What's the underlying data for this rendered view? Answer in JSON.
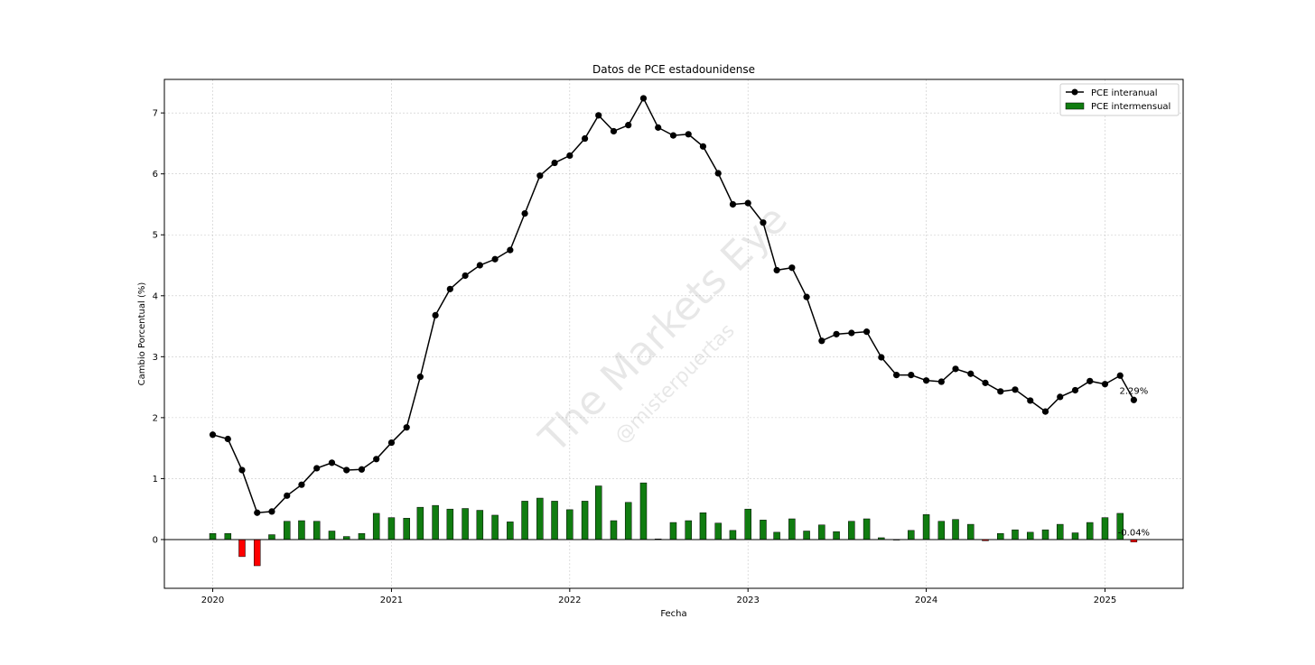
{
  "chart_data": {
    "type": "line",
    "title": "Datos de PCE estadounidense",
    "xlabel": "Fecha",
    "ylabel": "Cambio Porcentual (%)",
    "xlim": [
      "2019-09-24",
      "2025-06-10"
    ],
    "ylim": [
      -0.8,
      7.55
    ],
    "x_ticks": [
      "2020",
      "2021",
      "2022",
      "2023",
      "2024",
      "2025"
    ],
    "y_ticks": [
      0,
      1,
      2,
      3,
      4,
      5,
      6,
      7
    ],
    "grid": true,
    "legend_position": "top-right",
    "dates": [
      "2020-01",
      "2020-02",
      "2020-03",
      "2020-04",
      "2020-05",
      "2020-06",
      "2020-07",
      "2020-08",
      "2020-09",
      "2020-10",
      "2020-11",
      "2020-12",
      "2021-01",
      "2021-02",
      "2021-03",
      "2021-04",
      "2021-05",
      "2021-06",
      "2021-07",
      "2021-08",
      "2021-09",
      "2021-10",
      "2021-11",
      "2021-12",
      "2022-01",
      "2022-02",
      "2022-03",
      "2022-04",
      "2022-05",
      "2022-06",
      "2022-07",
      "2022-08",
      "2022-09",
      "2022-10",
      "2022-11",
      "2022-12",
      "2023-01",
      "2023-02",
      "2023-03",
      "2023-04",
      "2023-05",
      "2023-06",
      "2023-07",
      "2023-08",
      "2023-09",
      "2023-10",
      "2023-11",
      "2023-12",
      "2024-01",
      "2024-02",
      "2024-03",
      "2024-04",
      "2024-05",
      "2024-06",
      "2024-07",
      "2024-08",
      "2024-09",
      "2024-10",
      "2024-11",
      "2024-12",
      "2025-01",
      "2025-02",
      "2025-03"
    ],
    "series": [
      {
        "name": "PCE interanual",
        "type": "line",
        "color": "#000000",
        "values": [
          1.72,
          1.65,
          1.14,
          0.44,
          0.46,
          0.72,
          0.9,
          1.17,
          1.26,
          1.14,
          1.15,
          1.32,
          1.59,
          1.84,
          2.67,
          3.68,
          4.11,
          4.33,
          4.5,
          4.6,
          4.75,
          5.35,
          5.97,
          6.18,
          6.3,
          6.58,
          6.96,
          6.7,
          6.8,
          7.24,
          6.76,
          6.63,
          6.65,
          6.45,
          6.01,
          5.5,
          5.52,
          5.2,
          4.42,
          4.46,
          3.98,
          3.26,
          3.37,
          3.39,
          3.41,
          2.99,
          2.7,
          2.7,
          2.61,
          2.59,
          2.8,
          2.72,
          2.57,
          2.43,
          2.46,
          2.28,
          2.1,
          2.34,
          2.45,
          2.6,
          2.55,
          2.69,
          2.29
        ]
      },
      {
        "name": "PCE intermensual",
        "type": "bar",
        "color": "#107c10",
        "negative_color": "#ff0000",
        "values": [
          0.1,
          0.1,
          -0.28,
          -0.43,
          0.08,
          0.3,
          0.31,
          0.3,
          0.14,
          0.05,
          0.1,
          0.43,
          0.36,
          0.35,
          0.53,
          0.56,
          0.5,
          0.51,
          0.48,
          0.4,
          0.29,
          0.63,
          0.68,
          0.63,
          0.49,
          0.63,
          0.88,
          0.31,
          0.61,
          0.93,
          0.01,
          0.28,
          0.31,
          0.44,
          0.27,
          0.15,
          0.5,
          0.32,
          0.12,
          0.34,
          0.14,
          0.24,
          0.13,
          0.3,
          0.34,
          0.03,
          0.0,
          0.15,
          0.41,
          0.3,
          0.33,
          0.25,
          -0.02,
          0.1,
          0.16,
          0.12,
          0.16,
          0.25,
          0.11,
          0.28,
          0.36,
          0.43,
          -0.04
        ]
      }
    ],
    "annotations": [
      {
        "text": "2.29%",
        "series": "PCE interanual",
        "date": "2025-03",
        "value": 2.29
      },
      {
        "text": "-0.04%",
        "series": "PCE intermensual",
        "date": "2025-03",
        "value": -0.04
      }
    ],
    "watermark": {
      "main": "The Markets Eye",
      "sub": "@misterpuertas"
    }
  }
}
